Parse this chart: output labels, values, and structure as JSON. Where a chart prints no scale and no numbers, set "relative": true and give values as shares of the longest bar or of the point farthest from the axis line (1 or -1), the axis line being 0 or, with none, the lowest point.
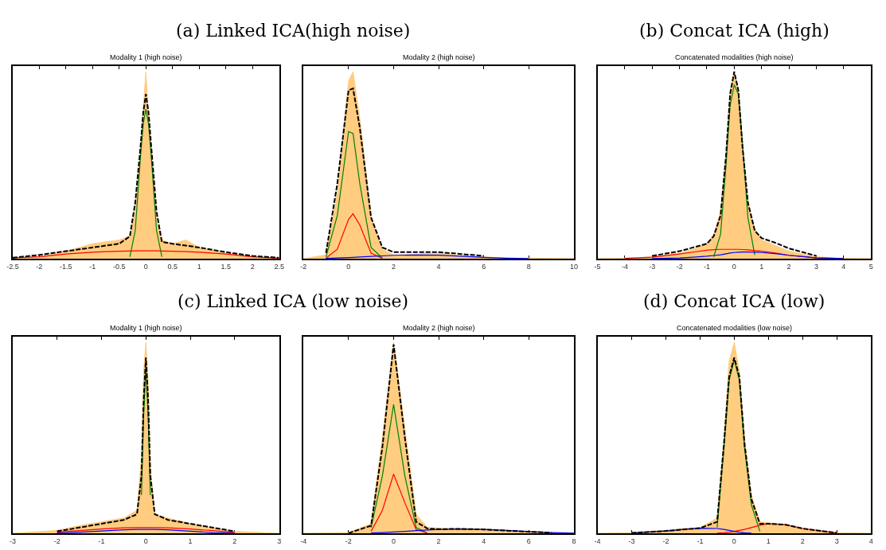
{
  "chart_data": [
    {
      "type": "area",
      "title": "(a) Linked ICA(high noise)",
      "subtitle": "Modality 1 (high noise)",
      "relative": true,
      "xlim": [
        -2.5,
        2.5
      ],
      "xticks": [
        -2.5,
        -2,
        -1.5,
        -1,
        -0.5,
        0,
        0.5,
        1,
        1.5,
        2,
        2.5
      ],
      "x": [
        -2.5,
        -2,
        -1.5,
        -1,
        -0.75,
        -0.5,
        -0.3,
        -0.2,
        -0.1,
        -0.05,
        0,
        0.05,
        0.1,
        0.2,
        0.3,
        0.5,
        0.75,
        1,
        1.5,
        2,
        2.5
      ],
      "series": [
        {
          "color": "#ffcc80",
          "values": [
            0,
            0.01,
            0.04,
            0.08,
            0.09,
            0.1,
            0.12,
            0.25,
            0.6,
            0.8,
            1,
            0.75,
            0.55,
            0.2,
            0.1,
            0.08,
            0.1,
            0.06,
            0.03,
            0.01,
            0
          ]
        },
        {
          "type": "line",
          "color": "#000000",
          "line_style": "dashed",
          "values": [
            0.005,
            0.02,
            0.04,
            0.06,
            0.07,
            0.08,
            0.12,
            0.3,
            0.6,
            0.78,
            0.88,
            0.78,
            0.6,
            0.25,
            0.09,
            0.08,
            0.07,
            0.06,
            0.035,
            0.015,
            0.005
          ]
        },
        {
          "type": "line",
          "color": "#008000",
          "values": [
            null,
            null,
            null,
            null,
            null,
            null,
            0.01,
            0.15,
            0.55,
            0.72,
            0.8,
            0.72,
            0.55,
            0.15,
            0.01,
            null,
            null,
            null,
            null,
            null,
            null
          ]
        },
        {
          "type": "line",
          "color": "#ff0000",
          "values": [
            0.005,
            0.01,
            0.025,
            0.035,
            0.038,
            0.04,
            0.041,
            0.042,
            0.042,
            0.042,
            0.042,
            0.042,
            0.042,
            0.042,
            0.041,
            0.04,
            0.038,
            0.035,
            0.025,
            0.01,
            0.003
          ]
        }
      ]
    },
    {
      "type": "area",
      "subtitle": "Modality 2 (high noise)",
      "relative": true,
      "xlim": [
        -2,
        10
      ],
      "xticks": [
        -2,
        0,
        2,
        4,
        6,
        8,
        10
      ],
      "x": [
        -2,
        -1,
        -0.5,
        0,
        0.2,
        0.5,
        1,
        1.5,
        2,
        3,
        4,
        5,
        6,
        7,
        8,
        10
      ],
      "series": [
        {
          "color": "#ffcc80",
          "values": [
            0,
            0.02,
            0.35,
            0.95,
            1,
            0.75,
            0.22,
            0.05,
            0.02,
            0.025,
            0.03,
            0.015,
            0.01,
            0.003,
            0.003,
            0
          ]
        },
        {
          "type": "line",
          "color": "#000000",
          "line_style": "dashed",
          "values": [
            null,
            0.03,
            0.4,
            0.9,
            0.91,
            0.7,
            0.22,
            0.06,
            0.035,
            0.035,
            0.035,
            0.025,
            0.015,
            null,
            null,
            null
          ]
        },
        {
          "type": "line",
          "color": "#008000",
          "values": [
            null,
            0.01,
            0.23,
            0.68,
            0.67,
            0.4,
            0.06,
            0.003,
            null,
            null,
            null,
            null,
            null,
            null,
            null,
            null
          ]
        },
        {
          "type": "line",
          "color": "#ff0000",
          "values": [
            null,
            0.003,
            0.05,
            0.21,
            0.24,
            0.18,
            0.03,
            0.002,
            null,
            null,
            null,
            null,
            null,
            null,
            null,
            null
          ]
        },
        {
          "type": "line",
          "color": "#0000ff",
          "values": [
            null,
            0.002,
            0.004,
            0.006,
            0.007,
            0.009,
            0.012,
            0.015,
            0.018,
            0.02,
            0.019,
            0.013,
            0.007,
            0.003,
            0.001,
            null
          ]
        }
      ]
    },
    {
      "type": "area",
      "title": "(b) Concat ICA (high)",
      "subtitle": "Concatenated modalities (high noise)",
      "relative": true,
      "xlim": [
        -5,
        5
      ],
      "xticks": [
        -5,
        -4,
        -3,
        -2,
        -1,
        0,
        1,
        2,
        3,
        4,
        5
      ],
      "x": [
        -5,
        -4,
        -3,
        -2,
        -1.5,
        -1,
        -0.75,
        -0.5,
        -0.3,
        -0.15,
        0,
        0.15,
        0.3,
        0.5,
        0.75,
        1,
        1.5,
        2,
        3,
        4,
        5
      ],
      "series": [
        {
          "color": "#ffcc80",
          "values": [
            0,
            0.002,
            0.01,
            0.03,
            0.05,
            0.08,
            0.13,
            0.25,
            0.55,
            0.9,
            1,
            0.9,
            0.6,
            0.3,
            0.16,
            0.1,
            0.07,
            0.04,
            0.01,
            0.002,
            0
          ]
        },
        {
          "type": "line",
          "color": "#000000",
          "line_style": "dashed",
          "values": [
            null,
            null,
            0.015,
            0.04,
            0.06,
            0.08,
            0.12,
            0.23,
            0.55,
            0.88,
            1,
            0.9,
            0.6,
            0.3,
            0.15,
            0.11,
            0.085,
            0.055,
            0.015,
            null,
            null
          ]
        },
        {
          "type": "line",
          "color": "#008000",
          "values": [
            null,
            null,
            null,
            null,
            null,
            null,
            0.01,
            0.13,
            0.5,
            0.82,
            0.93,
            0.88,
            0.62,
            0.22,
            0.02,
            null,
            null,
            null,
            null,
            null,
            null
          ]
        },
        {
          "type": "line",
          "color": "#ff0000",
          "values": [
            null,
            0.002,
            0.008,
            0.025,
            0.035,
            0.045,
            0.048,
            0.05,
            0.05,
            0.05,
            0.05,
            0.05,
            0.049,
            0.047,
            0.043,
            0.04,
            0.03,
            0.018,
            0.004,
            0.001,
            null
          ]
        },
        {
          "type": "line",
          "color": "#0000ff",
          "values": [
            null,
            null,
            0.001,
            0.004,
            0.008,
            0.013,
            0.017,
            0.021,
            0.026,
            0.03,
            0.033,
            0.035,
            0.036,
            0.036,
            0.035,
            0.033,
            0.027,
            0.018,
            0.005,
            0.001,
            null
          ]
        }
      ]
    },
    {
      "type": "area",
      "title": "(c) Linked ICA (low noise)",
      "subtitle": "Modality 1 (high noise)",
      "relative": true,
      "xlim": [
        -3,
        3
      ],
      "xticks": [
        -3,
        -2,
        -1,
        0,
        1,
        2,
        3
      ],
      "x": [
        -3,
        -2,
        -1.5,
        -1,
        -0.5,
        -0.2,
        -0.1,
        -0.05,
        0,
        0.05,
        0.1,
        0.2,
        0.5,
        1,
        1.5,
        2,
        3
      ],
      "series": [
        {
          "color": "#ffcc80",
          "values": [
            0,
            0.015,
            0.04,
            0.06,
            0.08,
            0.12,
            0.4,
            0.85,
            1,
            0.8,
            0.35,
            0.1,
            0.08,
            0.05,
            0.03,
            0.01,
            0
          ]
        },
        {
          "type": "line",
          "color": "#000000",
          "line_style": "dashed",
          "values": [
            null,
            0.01,
            0.03,
            0.05,
            0.07,
            0.1,
            0.3,
            0.7,
            0.92,
            0.7,
            0.3,
            0.1,
            0.07,
            0.05,
            0.03,
            0.01,
            null
          ]
        },
        {
          "type": "line",
          "color": "#008000",
          "values": [
            null,
            null,
            null,
            null,
            null,
            null,
            0.2,
            0.62,
            0.87,
            0.62,
            0.2,
            null,
            null,
            null,
            null,
            null,
            null
          ]
        },
        {
          "type": "line",
          "color": "#0000ff",
          "x": [
            -2,
            -1.5,
            -1,
            -0.5,
            -0.2,
            0.2,
            0.5,
            1,
            1.5,
            2
          ],
          "values": [
            0.002,
            0.006,
            0.012,
            0.018,
            0.02,
            0.02,
            0.018,
            0.011,
            0.004,
            0.001
          ]
        },
        {
          "type": "line",
          "color": "#ff0000",
          "values": [
            null,
            0.006,
            0.014,
            0.022,
            0.029,
            0.03,
            0.03,
            0.03,
            0.03,
            0.03,
            0.03,
            0.03,
            0.029,
            0.022,
            0.014,
            0.005,
            null
          ]
        }
      ]
    },
    {
      "type": "area",
      "subtitle": "Modality 2 (high noise)",
      "relative": true,
      "xlim": [
        -4,
        8
      ],
      "xticks": [
        -4,
        -2,
        0,
        2,
        4,
        6,
        8
      ],
      "x": [
        -4,
        -2,
        -1,
        -0.5,
        0,
        0.5,
        1,
        1.5,
        2,
        3,
        4,
        5,
        6,
        7,
        8
      ],
      "series": [
        {
          "color": "#ffcc80",
          "values": [
            0,
            0.004,
            0.05,
            0.5,
            1,
            0.55,
            0.1,
            0.03,
            0.025,
            0.025,
            0.022,
            0.015,
            0.008,
            0.004,
            0
          ]
        },
        {
          "type": "line",
          "color": "#000000",
          "line_style": "dashed",
          "values": [
            null,
            0.001,
            0.04,
            0.45,
            0.99,
            0.5,
            0.06,
            0.025,
            0.022,
            0.023,
            0.02,
            0.014,
            0.008,
            0.003,
            null
          ]
        },
        {
          "type": "line",
          "color": "#008000",
          "values": [
            null,
            null,
            0.03,
            0.3,
            0.675,
            0.3,
            0.03,
            0.001,
            null,
            null,
            null,
            null,
            null,
            null,
            null
          ]
        },
        {
          "type": "line",
          "color": "#ff0000",
          "values": [
            null,
            null,
            0.01,
            0.12,
            0.31,
            0.16,
            0.02,
            0.001,
            null,
            null,
            null,
            null,
            null,
            null,
            null
          ]
        },
        {
          "type": "line",
          "color": "#0000ff",
          "values": [
            null,
            null,
            0.002,
            0.004,
            0.007,
            0.01,
            0.014,
            0.017,
            0.02,
            0.022,
            0.02,
            0.015,
            0.009,
            0.004,
            0.001
          ]
        }
      ]
    },
    {
      "type": "area",
      "title": "(d) Concat ICA (low)",
      "subtitle": "Concatenated modalities (low noise)",
      "relative": true,
      "xlim": [
        -4,
        4
      ],
      "xticks": [
        -4,
        -3,
        -2,
        -1,
        0,
        1,
        2,
        3,
        4
      ],
      "x": [
        -4,
        -3,
        -2,
        -1.5,
        -1,
        -0.5,
        -0.3,
        -0.15,
        0,
        0.15,
        0.3,
        0.5,
        0.75,
        1,
        1.5,
        2,
        3,
        4
      ],
      "series": [
        {
          "color": "#ffcc80",
          "values": [
            0,
            0.003,
            0.015,
            0.025,
            0.03,
            0.08,
            0.5,
            0.9,
            1,
            0.85,
            0.5,
            0.2,
            0.06,
            0.055,
            0.045,
            0.025,
            0.003,
            0
          ]
        },
        {
          "type": "line",
          "color": "#000000",
          "line_style": "dashed",
          "values": [
            null,
            0.002,
            0.012,
            0.02,
            0.027,
            0.06,
            0.47,
            0.82,
            0.92,
            0.82,
            0.47,
            0.18,
            0.05,
            0.05,
            0.045,
            0.025,
            0.002,
            null
          ]
        },
        {
          "type": "line",
          "color": "#008000",
          "values": [
            null,
            null,
            null,
            null,
            null,
            0.03,
            0.45,
            0.8,
            0.91,
            0.8,
            0.45,
            0.15,
            0.01,
            null,
            null,
            null,
            null,
            null
          ]
        },
        {
          "type": "line",
          "color": "#ff0000",
          "values": [
            null,
            null,
            null,
            null,
            null,
            0.001,
            0.003,
            0.006,
            0.01,
            0.015,
            0.02,
            0.03,
            0.042,
            0.05,
            0.045,
            0.025,
            0.002,
            null
          ]
        },
        {
          "type": "line",
          "color": "#0000ff",
          "values": [
            null,
            0.002,
            0.012,
            0.02,
            0.027,
            0.025,
            0.02,
            0.015,
            0.01,
            0.006,
            0.003,
            0.001,
            null,
            null,
            null,
            null,
            null,
            null
          ]
        }
      ]
    }
  ]
}
